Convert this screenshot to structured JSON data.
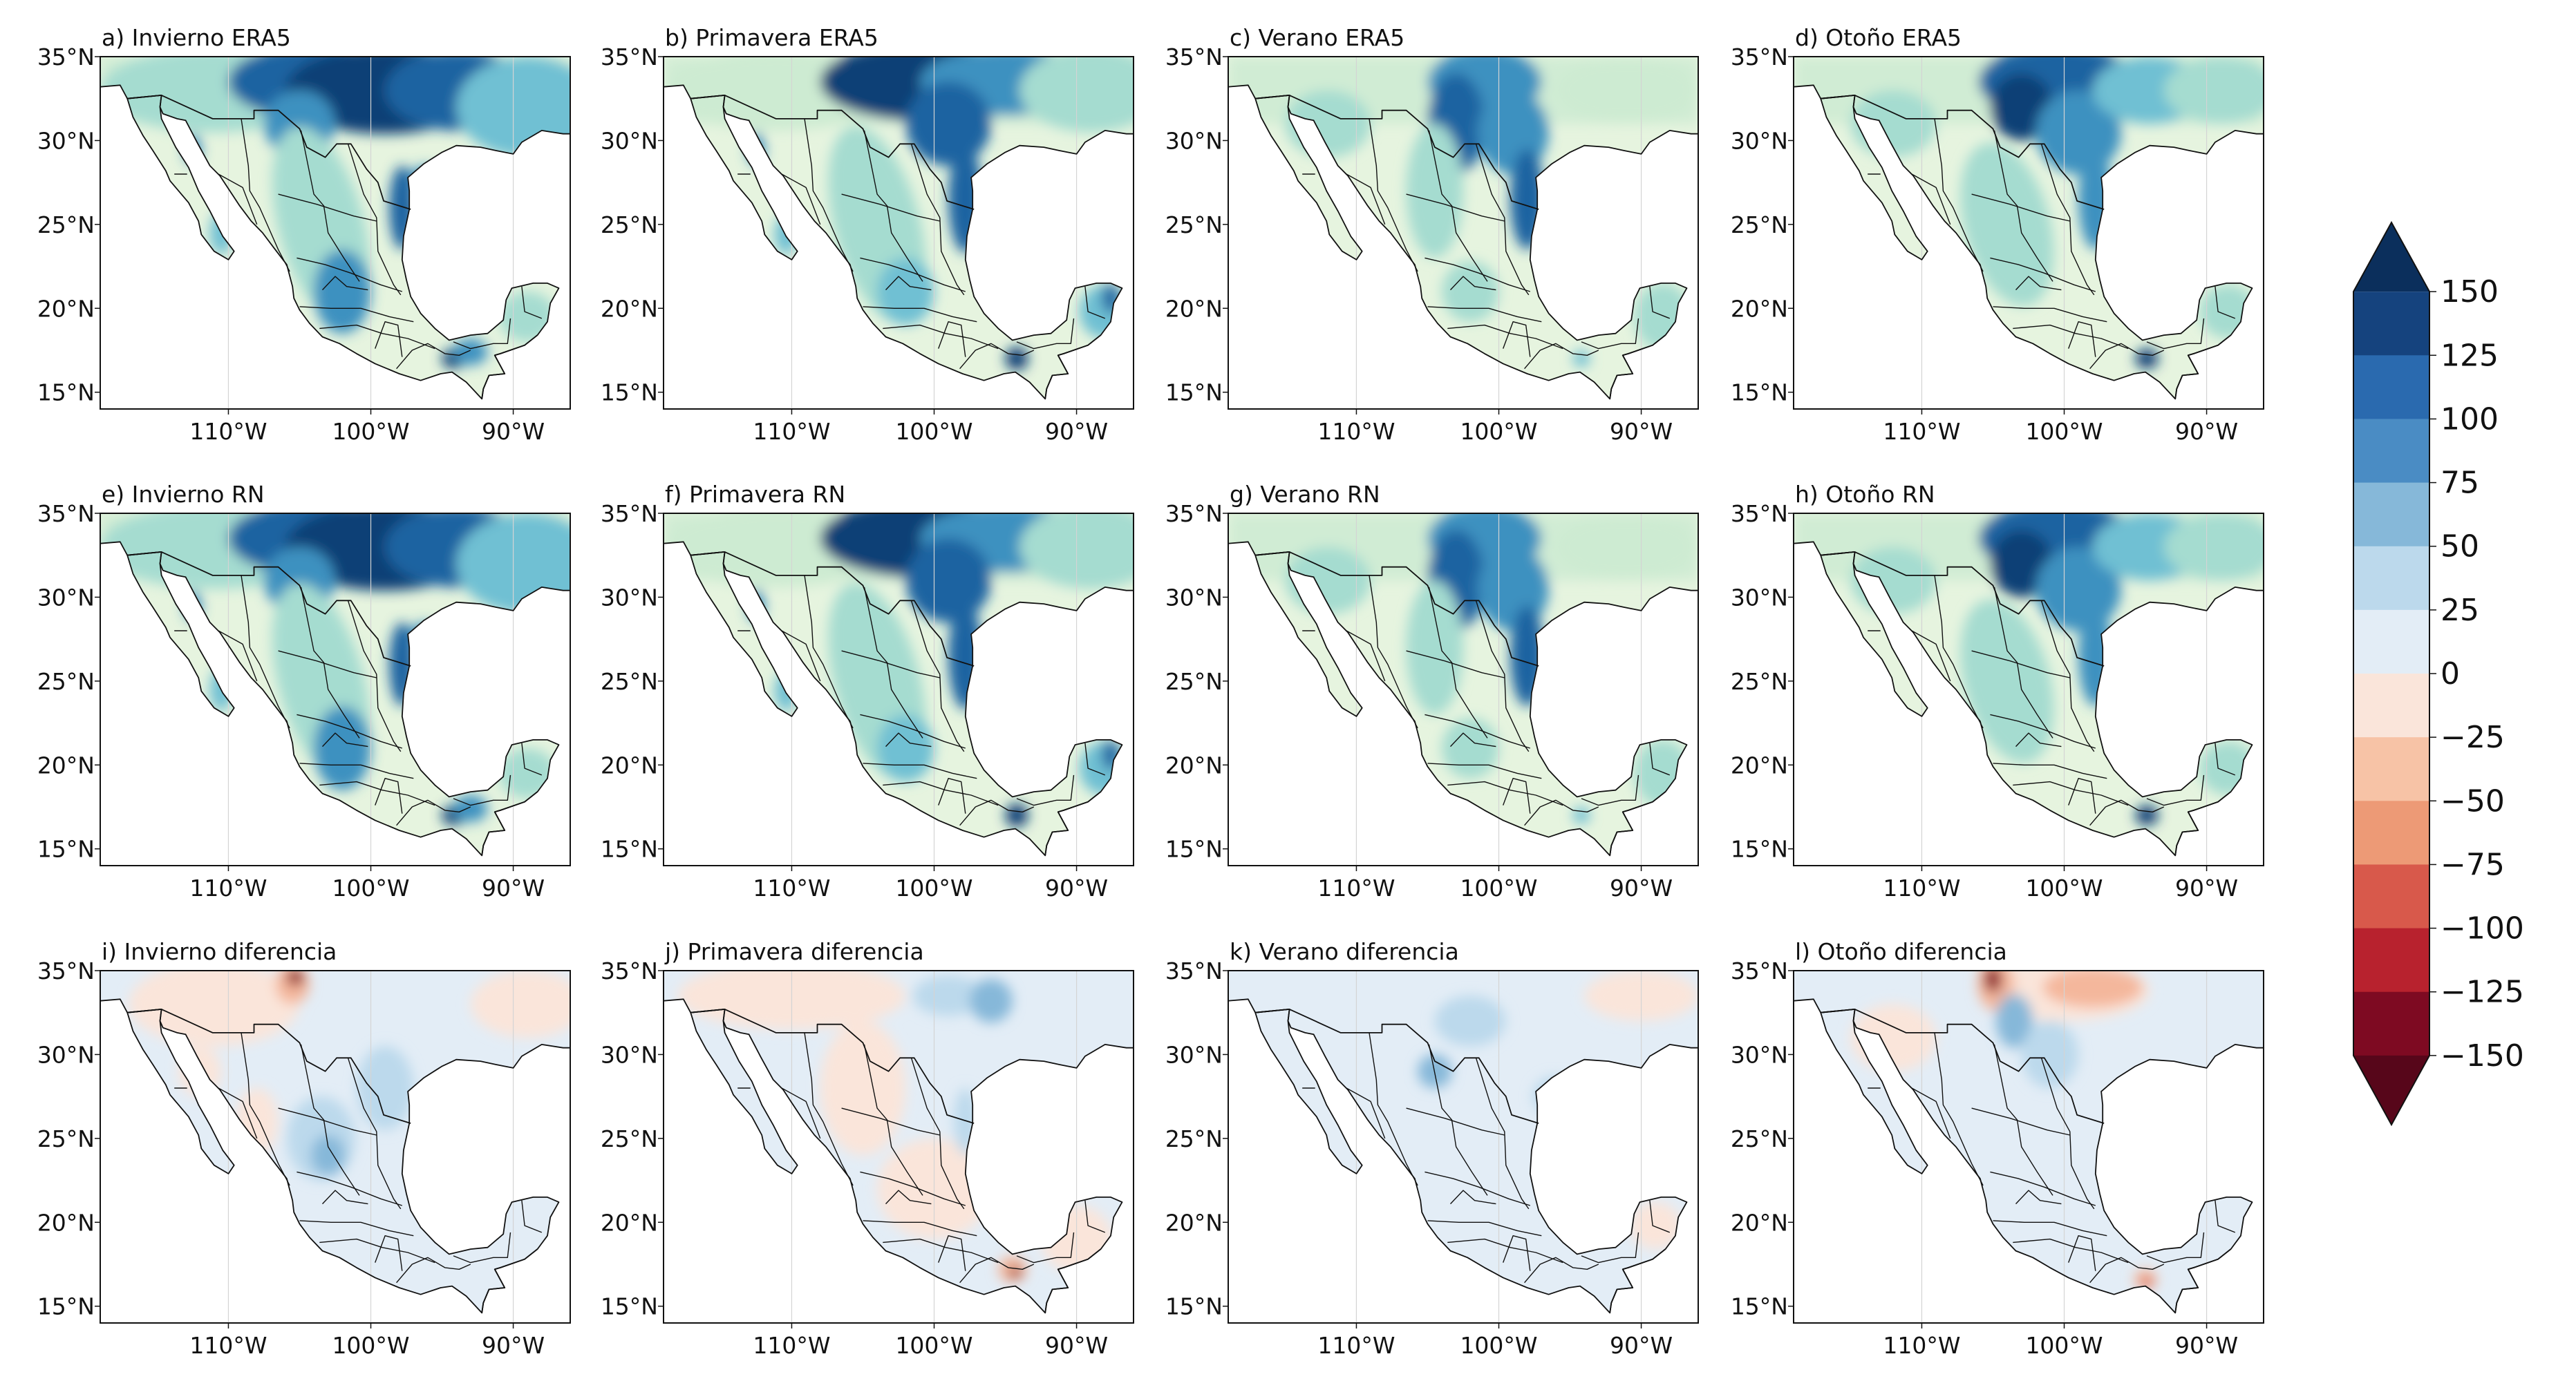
{
  "axes": {
    "lat_ticks": [
      "35°N",
      "30°N",
      "25°N",
      "20°N",
      "15°N"
    ],
    "lon_ticks": [
      "110°W",
      "100°W",
      "90°W"
    ]
  },
  "panels": [
    {
      "label": "a) Invierno ERA5",
      "kind": "field",
      "season": "winter",
      "diff": false
    },
    {
      "label": "b) Primavera ERA5",
      "kind": "field",
      "season": "spring",
      "diff": false
    },
    {
      "label": "c) Verano ERA5",
      "kind": "field",
      "season": "summer",
      "diff": false
    },
    {
      "label": "d) Otoño ERA5",
      "kind": "field",
      "season": "autumn",
      "diff": false
    },
    {
      "label": "e) Invierno RN",
      "kind": "field",
      "season": "winter",
      "diff": false
    },
    {
      "label": "f) Primavera RN",
      "kind": "field",
      "season": "spring",
      "diff": false
    },
    {
      "label": "g) Verano RN",
      "kind": "field",
      "season": "summer",
      "diff": false
    },
    {
      "label": "h) Otoño RN",
      "kind": "field",
      "season": "autumn",
      "diff": false
    },
    {
      "label": "i) Invierno diferencia",
      "kind": "difference",
      "season": "winter",
      "diff": true
    },
    {
      "label": "j) Primavera diferencia",
      "kind": "difference",
      "season": "spring",
      "diff": true
    },
    {
      "label": "k) Verano diferencia",
      "kind": "difference",
      "season": "summer",
      "diff": true
    },
    {
      "label": "l) Otoño diferencia",
      "kind": "difference",
      "season": "autumn",
      "diff": true
    }
  ],
  "colorbar": {
    "ticks": [
      "150",
      "125",
      "100",
      "75",
      "50",
      "25",
      "0",
      "−25",
      "−50",
      "−75",
      "−100",
      "−125",
      "−150"
    ],
    "range": [
      -150,
      150
    ],
    "extend": "both",
    "colors_top_to_bottom": [
      "#0b2f5c",
      "#15437e",
      "#2a6aaf",
      "#4a8cc4",
      "#86b8d9",
      "#bcd9ec",
      "#e3edf6",
      "#fae5da",
      "#f7c3a6",
      "#ed9a76",
      "#d8594b",
      "#b8222e",
      "#7e0a22",
      "#57061a"
    ]
  },
  "field_palette": [
    "#f6fbf2",
    "#e6f4df",
    "#cdebd2",
    "#a5dcd0",
    "#6fc0d3",
    "#3d91c0",
    "#1a63a1",
    "#0c3f76"
  ],
  "diff_palette": {
    "neutral": "#e3edf6",
    "pos_light": "#bcd9ec",
    "pos_mid": "#86b8d9",
    "neg_light": "#fae5da",
    "neg_mid": "#f4b79c",
    "neg_strong": "#d8594b",
    "neg_dark": "#8b0f23"
  }
}
